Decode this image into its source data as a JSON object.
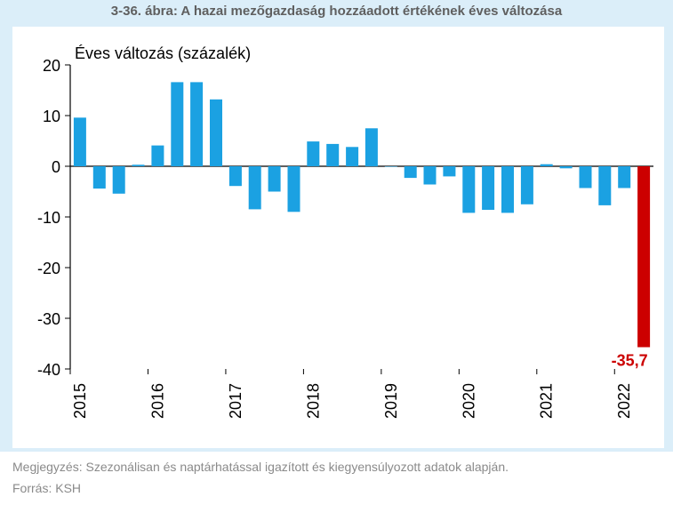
{
  "title": "3-36. ábra: A hazai mezőgazdaság hozzáadott értékének éves változása",
  "note": "Megjegyzés: Szezonálisan és naptárhatással igazított és kiegyensúlyozott adatok alapján.",
  "source": "Forrás: KSH",
  "colors": {
    "bar": "#1ba1e2",
    "highlight": "#cc0000",
    "frame": "#dbeef9"
  },
  "chart_data": {
    "type": "bar",
    "ylabel": "Éves változás (százalék)",
    "ylim": [
      -40,
      20
    ],
    "yticks": [
      20,
      10,
      0,
      -10,
      -20,
      -30,
      -40
    ],
    "years": [
      "2015",
      "2016",
      "2017",
      "2018",
      "2019",
      "2020",
      "2021",
      "2022"
    ],
    "values": [
      9.6,
      -4.4,
      -5.4,
      0.3,
      4.1,
      16.6,
      16.6,
      13.2,
      -3.9,
      -8.5,
      -5.0,
      -9.0,
      4.9,
      4.4,
      3.8,
      7.5,
      0.0,
      -2.3,
      -3.6,
      -2.0,
      -9.2,
      -8.6,
      -9.2,
      -7.5,
      0.4,
      -0.4,
      -4.3,
      -7.7,
      -4.3,
      -35.7
    ],
    "highlight_label": "-35,7",
    "grid": false,
    "legend": "none"
  }
}
